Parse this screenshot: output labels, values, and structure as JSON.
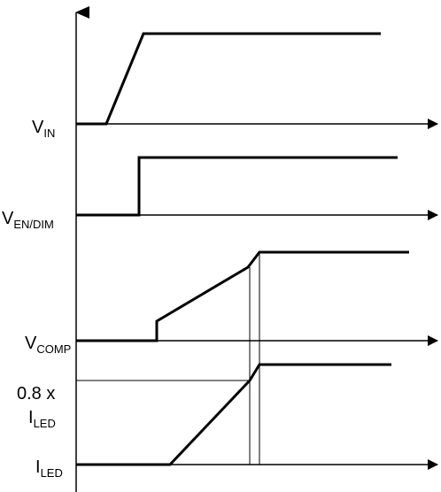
{
  "diagram": {
    "signals": [
      {
        "main": "V",
        "sub": "IN"
      },
      {
        "main": "V",
        "sub": "EN/DIM"
      },
      {
        "main": "V",
        "sub": "COMP"
      },
      {
        "main": "I",
        "sub": "LED"
      }
    ],
    "annotation": {
      "line1": "0.8 x",
      "line2_main": "I",
      "line2_sub": "LED"
    },
    "colors": {
      "stroke": "#000000",
      "background": "#ffffff"
    }
  }
}
